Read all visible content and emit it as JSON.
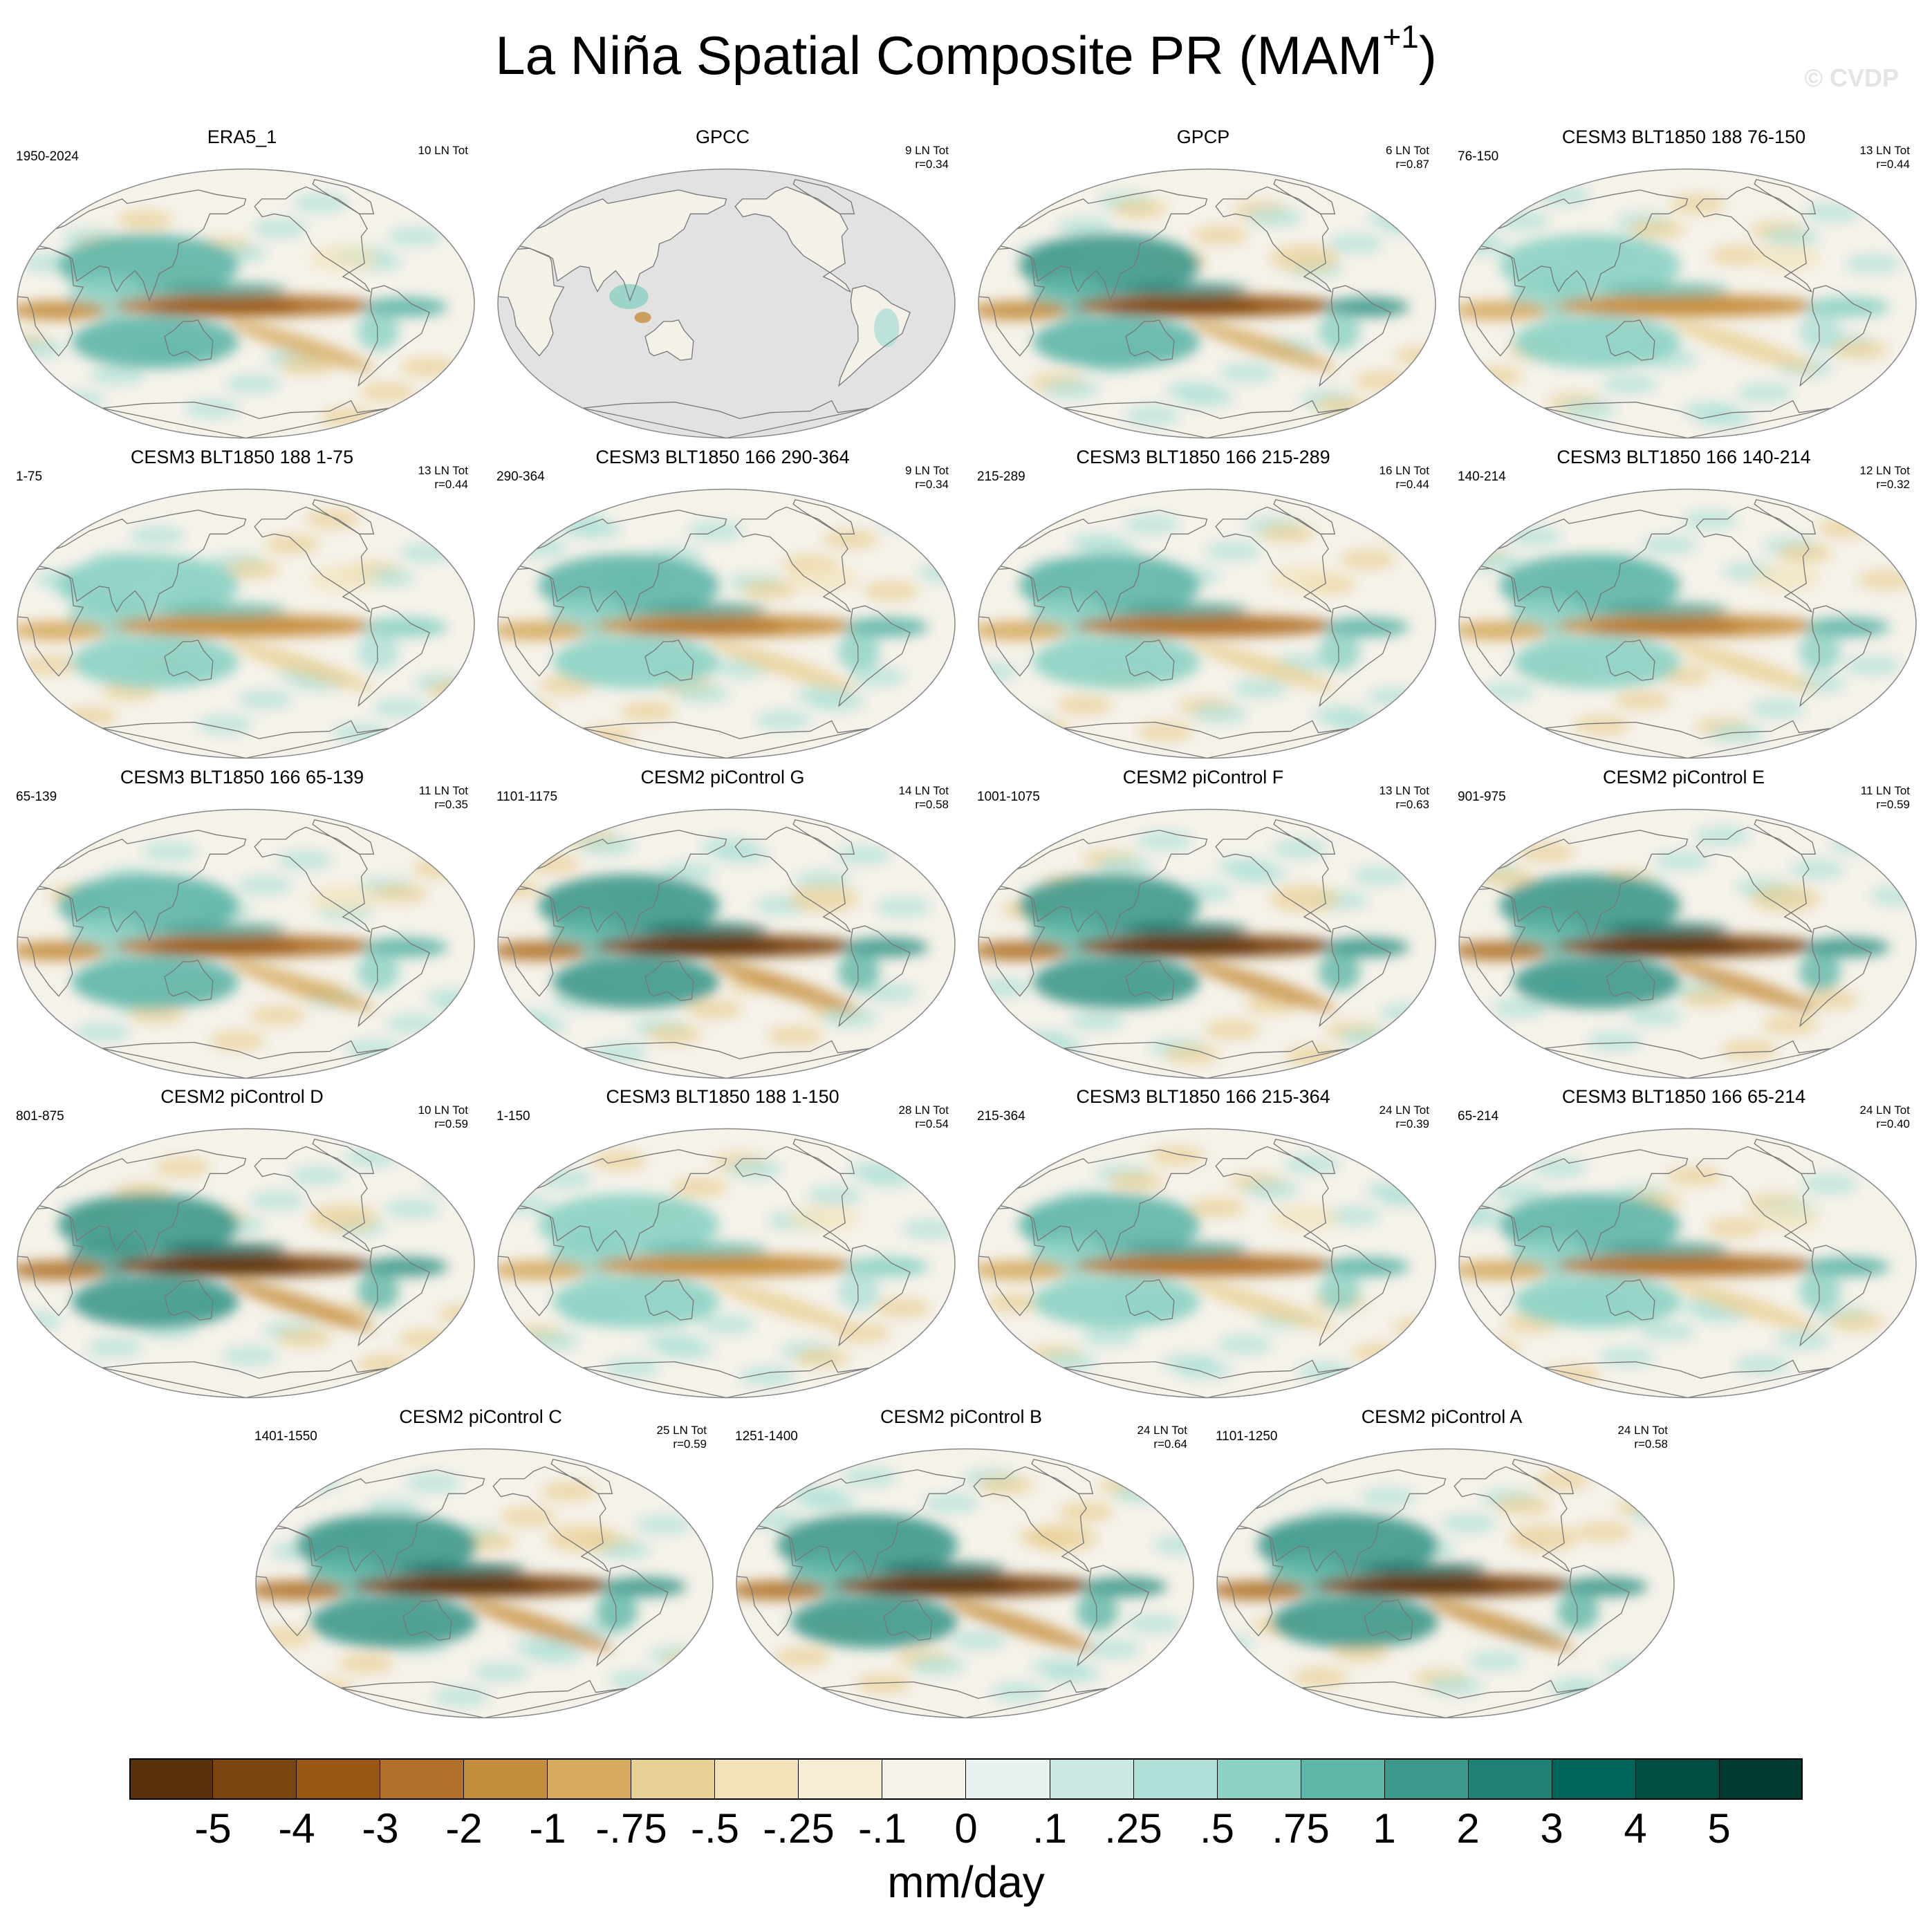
{
  "title": {
    "main": "La Niña Spatial Composite PR (MAM",
    "superscript": "+1",
    "close": ")"
  },
  "watermark": "© CVDP",
  "panels": [
    {
      "name": "ERA5_1",
      "years": "1950-2024",
      "count": "10 LN Tot",
      "r": "",
      "missing_ocean": false,
      "intensity": 0.75
    },
    {
      "name": "GPCC",
      "years": "",
      "count": "9 LN Tot",
      "r": "r=0.34",
      "missing_ocean": true,
      "intensity": 0.3
    },
    {
      "name": "GPCP",
      "years": "",
      "count": "6 LN Tot",
      "r": "r=0.87",
      "missing_ocean": false,
      "intensity": 0.85
    },
    {
      "name": "CESM3 BLT1850 188 76-150",
      "years": "76-150",
      "count": "13 LN Tot",
      "r": "r=0.44",
      "missing_ocean": false,
      "intensity": 0.6
    },
    {
      "name": "CESM3 BLT1850 188 1-75",
      "years": "1-75",
      "count": "13 LN Tot",
      "r": "r=0.44",
      "missing_ocean": false,
      "intensity": 0.6
    },
    {
      "name": "CESM3 BLT1850 166 290-364",
      "years": "290-364",
      "count": "9 LN Tot",
      "r": "r=0.34",
      "missing_ocean": false,
      "intensity": 0.65
    },
    {
      "name": "CESM3 BLT1850 166 215-289",
      "years": "215-289",
      "count": "16 LN Tot",
      "r": "r=0.44",
      "missing_ocean": false,
      "intensity": 0.7
    },
    {
      "name": "CESM3 BLT1850 166 140-214",
      "years": "140-214",
      "count": "12 LN Tot",
      "r": "r=0.32",
      "missing_ocean": false,
      "intensity": 0.65
    },
    {
      "name": "CESM3 BLT1850 166 65-139",
      "years": "65-139",
      "count": "11 LN Tot",
      "r": "r=0.35",
      "missing_ocean": false,
      "intensity": 0.75
    },
    {
      "name": "CESM2 piControl G",
      "years": "1101-1175",
      "count": "14 LN Tot",
      "r": "r=0.58",
      "missing_ocean": false,
      "intensity": 0.95
    },
    {
      "name": "CESM2 piControl F",
      "years": "1001-1075",
      "count": "13 LN Tot",
      "r": "r=0.63",
      "missing_ocean": false,
      "intensity": 0.95
    },
    {
      "name": "CESM2 piControl E",
      "years": "901-975",
      "count": "11 LN Tot",
      "r": "r=0.59",
      "missing_ocean": false,
      "intensity": 0.95
    },
    {
      "name": "CESM2 piControl D",
      "years": "801-875",
      "count": "10 LN Tot",
      "r": "r=0.59",
      "missing_ocean": false,
      "intensity": 1.0
    },
    {
      "name": "CESM3 BLT1850 188 1-150",
      "years": "1-150",
      "count": "28 LN Tot",
      "r": "r=0.54",
      "missing_ocean": false,
      "intensity": 0.6
    },
    {
      "name": "CESM3 BLT1850 166 215-364",
      "years": "215-364",
      "count": "24 LN Tot",
      "r": "r=0.39",
      "missing_ocean": false,
      "intensity": 0.7
    },
    {
      "name": "CESM3 BLT1850 166 65-214",
      "years": "65-214",
      "count": "24 LN Tot",
      "r": "r=0.40",
      "missing_ocean": false,
      "intensity": 0.7
    },
    {
      "name": "CESM2 piControl C",
      "years": "1401-1550",
      "count": "25 LN Tot",
      "r": "r=0.59",
      "missing_ocean": false,
      "intensity": 0.95
    },
    {
      "name": "CESM2 piControl B",
      "years": "1251-1400",
      "count": "24 LN Tot",
      "r": "r=0.64",
      "missing_ocean": false,
      "intensity": 0.95
    },
    {
      "name": "CESM2 piControl A",
      "years": "1101-1250",
      "count": "24 LN Tot",
      "r": "r=0.58",
      "missing_ocean": false,
      "intensity": 0.95
    }
  ],
  "colorbar": {
    "colors": [
      "#5a3209",
      "#7b4510",
      "#975815",
      "#b0722a",
      "#c58e3e",
      "#d6ab60",
      "#e8cf93",
      "#f2e3bb",
      "#f6edd4",
      "#f5f2ea",
      "#e8f3f1",
      "#cbe8e3",
      "#afdfd7",
      "#8bd1c4",
      "#5eb6a8",
      "#3d998c",
      "#1f8074",
      "#00665b",
      "#004e43",
      "#003a31"
    ],
    "ticks": [
      "-5",
      "-4",
      "-3",
      "-2",
      "-1",
      "-.75",
      "-.5",
      "-.25",
      "-.1",
      "0",
      ".1",
      ".25",
      ".5",
      ".75",
      "1",
      "2",
      "3",
      "4",
      "5"
    ],
    "unit": "mm/day"
  }
}
